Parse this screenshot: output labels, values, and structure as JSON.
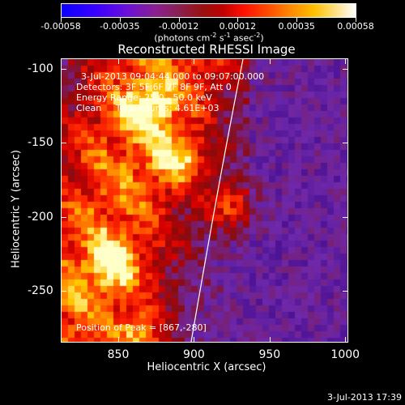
{
  "colorbar": {
    "tick_labels": [
      "-0.00058",
      "-0.00035",
      "-0.00012",
      "0.00012",
      "0.00035",
      "0.00058"
    ],
    "units_prefix": "(photons cm",
    "units_exp1": "-2",
    "units_mid": " s",
    "units_exp2": "-1",
    "units_mid2": " asec",
    "units_exp3": "-2",
    "units_suffix": ")",
    "colors": [
      "#0b00ff",
      "#8a2090",
      "#c00000",
      "#ff4a00",
      "#ffc000",
      "#ffffff"
    ]
  },
  "title": "Reconstructed RHESSI Image",
  "info": {
    "time_range": "3-Jul-2013 09:04:44.000 to 09:07:00.000",
    "detectors": "Detectors: 3F 5F 6F 7F 8F 9F, Att 0",
    "energy_range": "Energy Range: 25.0 - 50.0 keV",
    "clean": "Clean     Total counts: 4.61E+03",
    "peak": "Position of Peak = [867,-280]"
  },
  "chart_data": {
    "type": "heatmap",
    "title": "Reconstructed RHESSI Image",
    "xlabel": "Heliocentric X (arcsec)",
    "ylabel": "Heliocentric Y (arcsec)",
    "xlim": [
      812,
      1002
    ],
    "ylim": [
      -285,
      -93
    ],
    "x_ticks": [
      "850",
      "900",
      "950",
      "1000"
    ],
    "y_ticks": [
      "-100",
      "-150",
      "-200",
      "-250"
    ],
    "x_tick_values": [
      850,
      900,
      950,
      1000
    ],
    "y_tick_values": [
      -100,
      -150,
      -200,
      -250
    ],
    "color_range": [
      -0.00058,
      0.00058
    ],
    "peak_position": [
      867,
      -280
    ],
    "limb_line": true
  },
  "footer": {
    "timestamp": "3-Jul-2013 17:39"
  }
}
